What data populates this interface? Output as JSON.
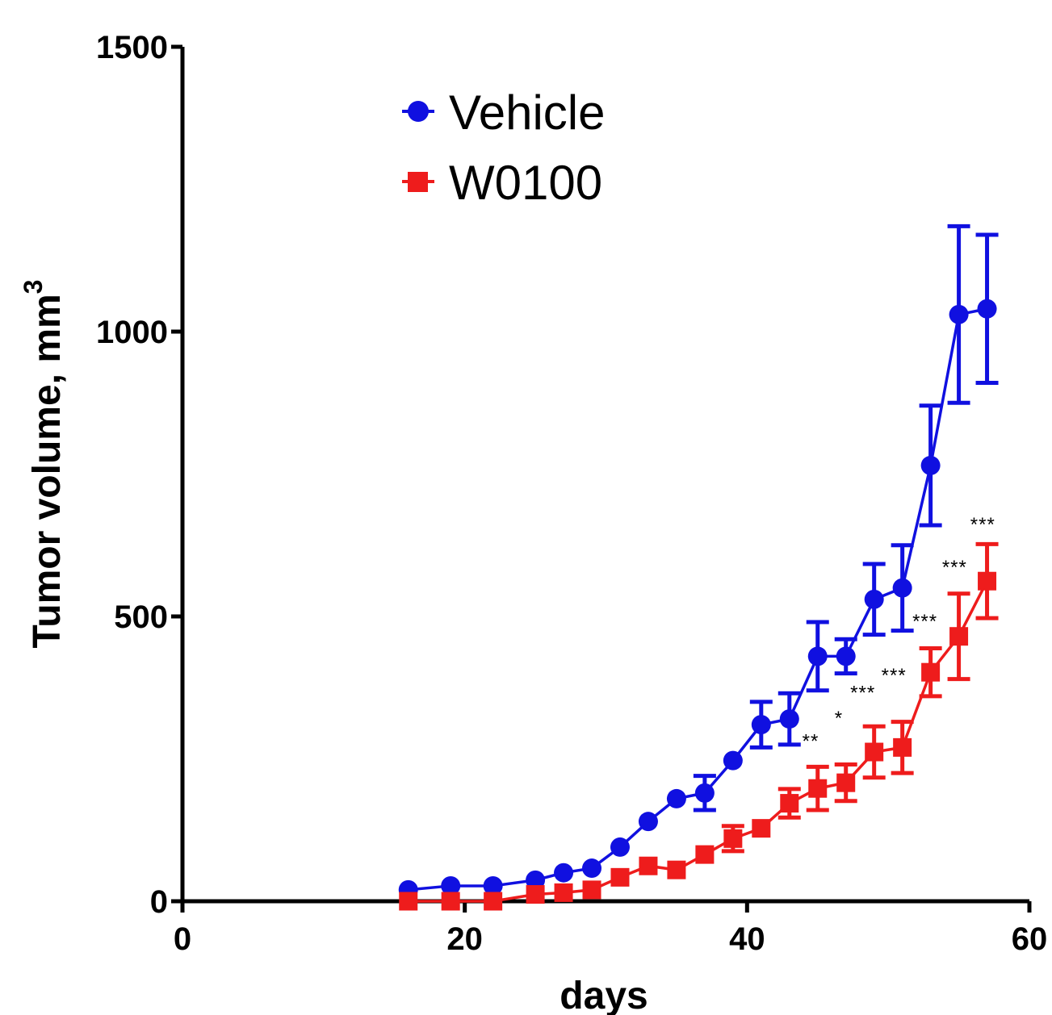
{
  "chart_data": {
    "type": "line",
    "title": "",
    "xlabel": "days",
    "ylabel": "Tumor volume, mm",
    "ylabel_superscript": "3",
    "xlim": [
      0,
      60
    ],
    "ylim": [
      0,
      1500
    ],
    "x_ticks": [
      0,
      20,
      40,
      60
    ],
    "x_tick_labels": [
      "0",
      "20",
      "40",
      "60"
    ],
    "y_ticks": [
      0,
      500,
      1000,
      1500
    ],
    "y_tick_labels": [
      "0",
      "500",
      "1000",
      "1500"
    ],
    "grid": false,
    "legend_position": "top-left",
    "series": [
      {
        "name": "Vehicle",
        "color": "#1010e0",
        "marker": "circle",
        "x": [
          16,
          19,
          22,
          25,
          27,
          29,
          31,
          33,
          35,
          37,
          39,
          41,
          43,
          45,
          47,
          49,
          51,
          53,
          55,
          57
        ],
        "y": [
          20,
          27,
          27,
          37,
          50,
          58,
          95,
          140,
          180,
          190,
          247,
          310,
          320,
          430,
          430,
          530,
          550,
          765,
          1030,
          1040
        ],
        "err": [
          0,
          0,
          0,
          0,
          0,
          0,
          0,
          0,
          0,
          30,
          0,
          40,
          45,
          60,
          30,
          62,
          75,
          105,
          155,
          130
        ]
      },
      {
        "name": "W0100",
        "color": "#ee1c1c",
        "marker": "square",
        "x": [
          16,
          19,
          22,
          25,
          27,
          29,
          31,
          33,
          35,
          37,
          39,
          41,
          43,
          45,
          47,
          49,
          51,
          53,
          55,
          57
        ],
        "y": [
          0,
          0,
          0,
          12,
          15,
          20,
          42,
          62,
          55,
          82,
          110,
          128,
          172,
          198,
          208,
          262,
          270,
          402,
          465,
          562
        ],
        "err": [
          0,
          0,
          0,
          0,
          0,
          0,
          0,
          0,
          0,
          0,
          22,
          0,
          25,
          38,
          32,
          45,
          45,
          42,
          75,
          65
        ]
      }
    ],
    "annotations": [
      {
        "text": "**",
        "x": 44.5,
        "y": 270
      },
      {
        "text": "*",
        "x": 46.5,
        "y": 310
      },
      {
        "text": "***",
        "x": 48.2,
        "y": 355
      },
      {
        "text": "***",
        "x": 50.4,
        "y": 385
      },
      {
        "text": "***",
        "x": 52.6,
        "y": 480
      },
      {
        "text": "***",
        "x": 54.7,
        "y": 575
      },
      {
        "text": "***",
        "x": 56.7,
        "y": 650
      }
    ]
  }
}
